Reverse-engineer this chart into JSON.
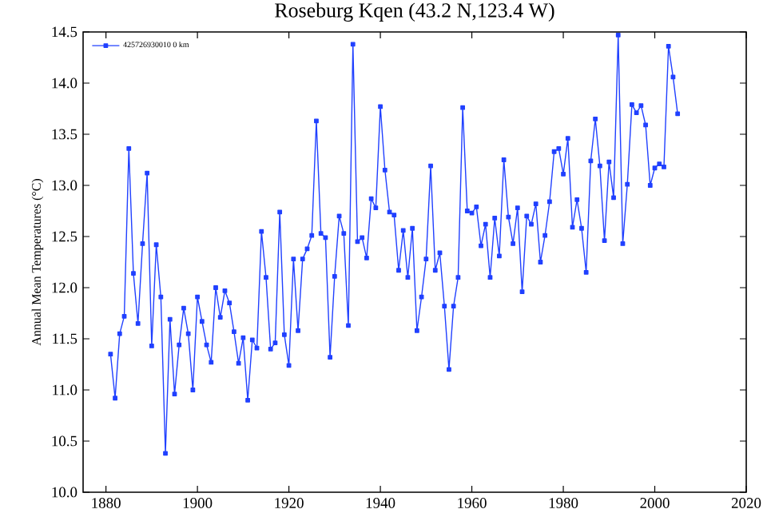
{
  "chart_data": {
    "type": "line",
    "title": "Roseburg Kqen (43.2 N,123.4 W)",
    "ylabel": "Annual Mean Temperatures (°C)",
    "x": [
      1881,
      1882,
      1883,
      1884,
      1885,
      1886,
      1887,
      1888,
      1889,
      1890,
      1891,
      1892,
      1893,
      1894,
      1895,
      1896,
      1897,
      1898,
      1899,
      1900,
      1901,
      1902,
      1903,
      1904,
      1905,
      1906,
      1907,
      1908,
      1909,
      1910,
      1911,
      1912,
      1913,
      1914,
      1915,
      1916,
      1917,
      1918,
      1919,
      1920,
      1921,
      1922,
      1923,
      1924,
      1925,
      1926,
      1927,
      1928,
      1929,
      1930,
      1931,
      1932,
      1933,
      1934,
      1935,
      1936,
      1937,
      1938,
      1939,
      1940,
      1941,
      1942,
      1943,
      1944,
      1945,
      1946,
      1947,
      1948,
      1949,
      1950,
      1951,
      1952,
      1953,
      1954,
      1955,
      1956,
      1957,
      1958,
      1959,
      1960,
      1961,
      1962,
      1963,
      1964,
      1965,
      1966,
      1967,
      1968,
      1969,
      1970,
      1971,
      1972,
      1973,
      1974,
      1975,
      1976,
      1977,
      1978,
      1979,
      1980,
      1981,
      1982,
      1983,
      1984,
      1985,
      1986,
      1987,
      1988,
      1989,
      1990,
      1991,
      1992,
      1993,
      1994,
      1995,
      1996,
      1997,
      1998,
      1999,
      2000,
      2001,
      2002,
      2003,
      2004,
      2005
    ],
    "series": [
      {
        "name": "425726930010  0 km",
        "color": "#2040ff",
        "values": [
          11.35,
          10.92,
          11.55,
          11.72,
          13.36,
          12.14,
          11.65,
          12.43,
          13.12,
          11.43,
          12.42,
          11.91,
          10.38,
          11.69,
          10.96,
          11.44,
          11.8,
          11.55,
          11.0,
          11.91,
          11.67,
          11.44,
          11.27,
          12.0,
          11.71,
          11.97,
          11.85,
          11.57,
          11.26,
          11.51,
          10.9,
          11.49,
          11.41,
          12.55,
          12.1,
          11.4,
          11.46,
          12.74,
          11.54,
          11.24,
          12.28,
          11.58,
          12.28,
          12.38,
          12.51,
          13.63,
          12.53,
          12.49,
          11.32,
          12.11,
          12.7,
          12.53,
          11.63,
          14.38,
          12.45,
          12.49,
          12.29,
          12.87,
          12.78,
          13.77,
          13.15,
          12.74,
          12.71,
          12.17,
          12.56,
          12.1,
          12.58,
          11.58,
          11.91,
          12.28,
          13.19,
          12.17,
          12.34,
          11.82,
          11.2,
          11.82,
          12.1,
          13.76,
          12.75,
          12.73,
          12.79,
          12.41,
          12.62,
          12.1,
          12.68,
          12.31,
          13.25,
          12.69,
          12.43,
          12.78,
          11.96,
          12.7,
          12.62,
          12.82,
          12.25,
          12.51,
          12.84,
          13.33,
          13.36,
          13.11,
          13.46,
          12.59,
          12.86,
          12.58,
          12.15,
          13.24,
          13.65,
          13.19,
          12.46,
          13.23,
          12.88,
          14.47,
          12.43,
          13.01,
          13.79,
          13.71,
          13.78,
          13.59,
          13.0,
          13.17,
          13.21,
          13.18,
          14.36,
          14.06,
          13.7
        ]
      }
    ],
    "xlim": [
      1875,
      2020
    ],
    "ylim": [
      10,
      14.5
    ],
    "xticks": [
      1880,
      1900,
      1920,
      1940,
      1960,
      1980,
      2000,
      2020
    ],
    "yticks": [
      {
        "value": 10,
        "label": "10.0"
      },
      {
        "value": 10.5,
        "label": "10.5"
      },
      {
        "value": 11,
        "label": "11.0"
      },
      {
        "value": 11.5,
        "label": "11.5"
      },
      {
        "value": 12,
        "label": "12.0"
      },
      {
        "value": 12.5,
        "label": "12.5"
      },
      {
        "value": 13,
        "label": "13.0"
      },
      {
        "value": 13.5,
        "label": "13.5"
      },
      {
        "value": 14,
        "label": "14.0"
      },
      {
        "value": 14.5,
        "label": "14.5"
      }
    ],
    "legend": "top left",
    "marker": "square",
    "line_style": "solid",
    "grid": false
  }
}
